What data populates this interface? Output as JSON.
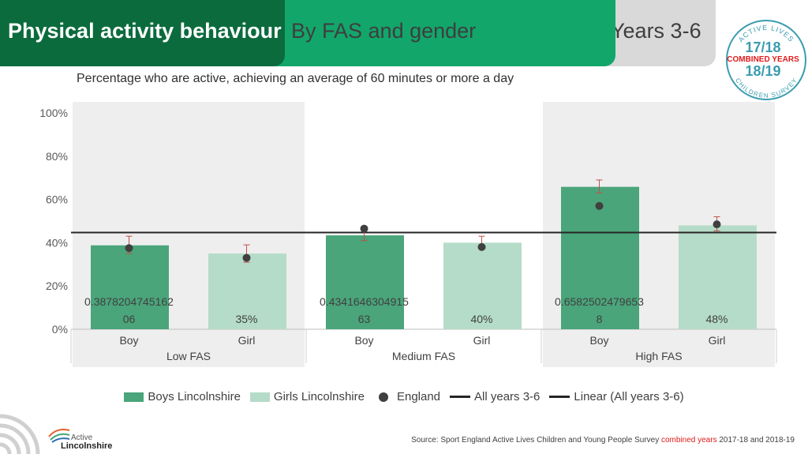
{
  "header": {
    "title": "Physical activity behaviour",
    "subtitle": "By FAS and gender",
    "years": "Years 3-6"
  },
  "badge": {
    "top_arc": "ACTIVE LIVES",
    "bottom_arc": "CHILDREN SURVEY",
    "year1": "17/18",
    "combined": "COMBINED YEARS",
    "year2": "18/19"
  },
  "chart_title": "Percentage who are active, achieving an average of 60 minutes or more a day",
  "chart_data": {
    "type": "bar",
    "categories": [
      "Boy",
      "Girl",
      "Boy",
      "Girl",
      "Boy",
      "Girl"
    ],
    "groups": [
      "Low FAS",
      "Medium FAS",
      "High FAS"
    ],
    "y_ticks": [
      "0%",
      "20%",
      "40%",
      "60%",
      "80%",
      "100%"
    ],
    "ylim": [
      0,
      1
    ],
    "series": [
      {
        "name": "Boys Lincolnshire",
        "color": "#4aa57a",
        "values": [
          0.3878204745162,
          null,
          0.4341646304915,
          null,
          0.6582502479653,
          null
        ]
      },
      {
        "name": "Girls Lincolnshire",
        "color": "#b5dcc8",
        "values": [
          null,
          0.35,
          null,
          0.4,
          null,
          0.48
        ]
      },
      {
        "name": "England",
        "color": "#404040",
        "values": [
          0.375,
          0.33,
          0.465,
          0.38,
          0.57,
          0.485
        ]
      },
      {
        "name": "All years 3-6",
        "color": "#262626",
        "value": 0.447
      },
      {
        "name": "Linear (All years 3-6)",
        "color": "#262626"
      }
    ],
    "error_bars": {
      "color": "#c0504d",
      "ranges": [
        [
          0.35,
          0.43
        ],
        [
          0.31,
          0.39
        ],
        [
          0.41,
          0.46
        ],
        [
          0.38,
          0.43
        ],
        [
          0.63,
          0.69
        ],
        [
          0.455,
          0.52
        ]
      ]
    },
    "data_labels": [
      [
        "0.3878204745162",
        "06"
      ],
      [
        "35%"
      ],
      [
        "0.4341646304915",
        "63"
      ],
      [
        "40%"
      ],
      [
        "0.6582502479653",
        "8"
      ],
      [
        "48%"
      ]
    ],
    "legend_placement": "bottom",
    "grid": false
  },
  "legend": {
    "boys": "Boys Lincolnshire",
    "girls": "Girls Lincolnshire",
    "england": "England",
    "all_years": "All years 3-6",
    "linear": "Linear (All years 3-6)"
  },
  "source": {
    "prefix": "Source: Sport England Active Lives Children and Young People Survey ",
    "highlight": "combined years",
    "suffix": " 2017-18 and 2018-19"
  },
  "logo": {
    "line1": "Active",
    "line2": "Lincolnshire"
  },
  "colors": {
    "header_dark": "#0b6b3d",
    "header_mid": "#12a66b",
    "header_grey": "#d9d9d9",
    "badge_teal": "#3b9cb0",
    "badge_red": "#e01b1b"
  }
}
